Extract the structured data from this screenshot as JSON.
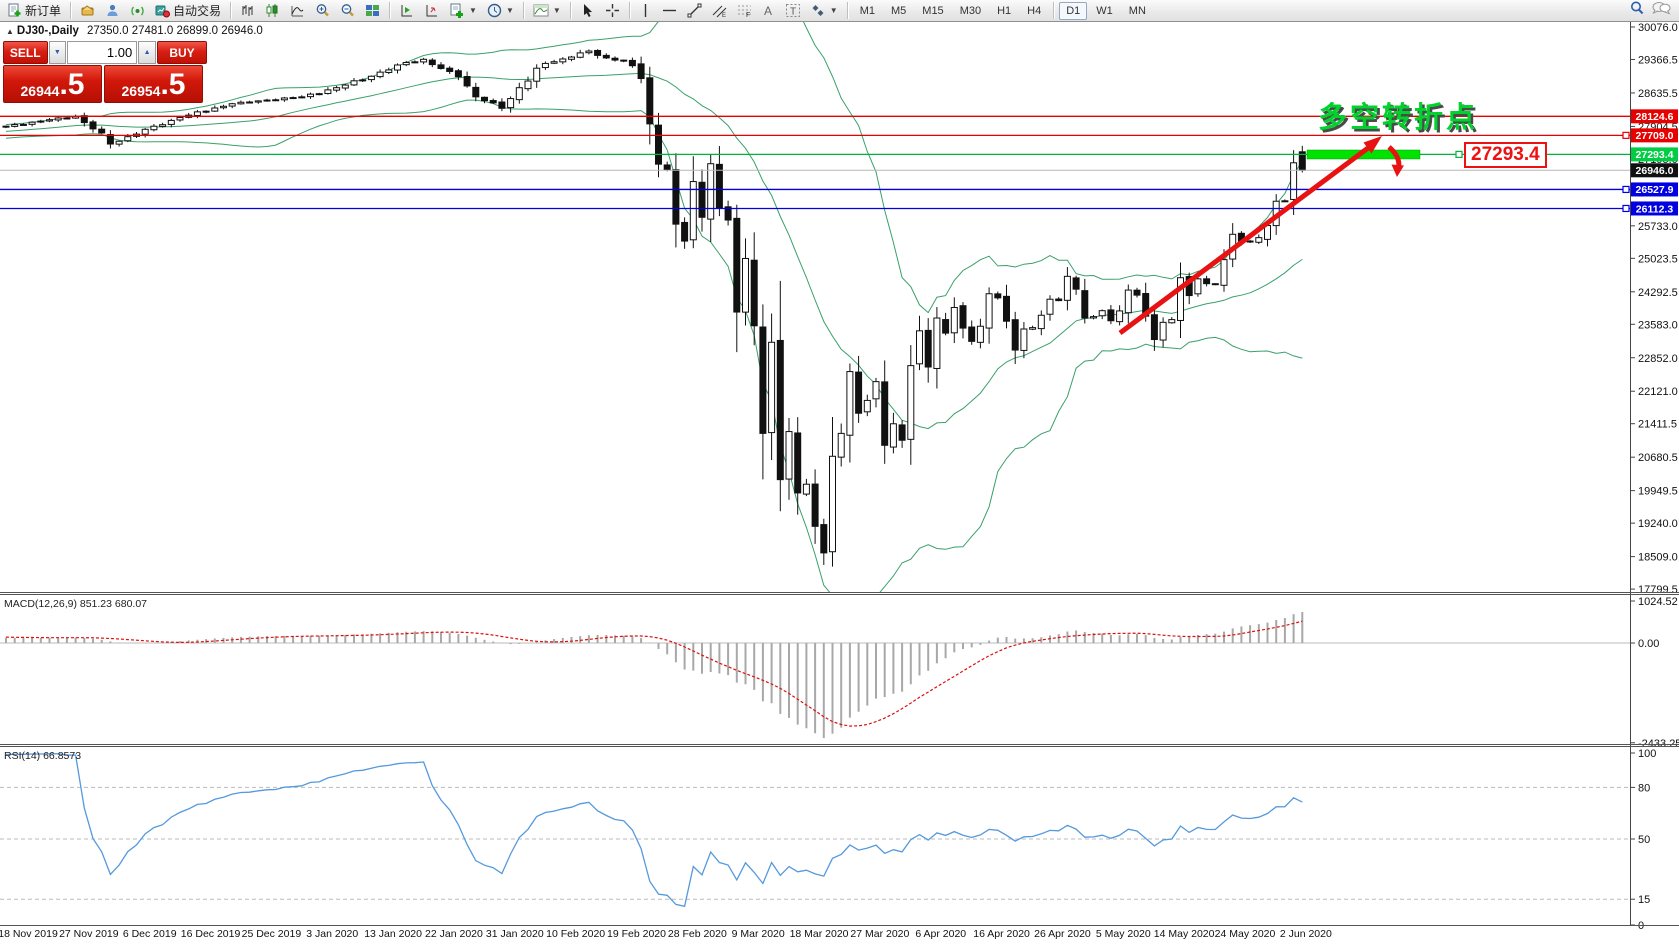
{
  "toolbar": {
    "new_order_label": "新订单",
    "autotrade_label": "自动交易",
    "timeframes": [
      "M1",
      "M5",
      "M15",
      "M30",
      "H1",
      "H4",
      "D1",
      "W1",
      "MN"
    ],
    "active_timeframe": "D1"
  },
  "chart": {
    "title_symbol": "DJ30-,Daily",
    "title_ohlc": "27350.0 27481.0 26899.0 26946.0"
  },
  "trade_panel": {
    "sell_label": "SELL",
    "buy_label": "BUY",
    "volume": "1.00",
    "sell_price_main": "26944",
    "sell_price_big": ".5",
    "buy_price_main": "26954",
    "buy_price_big": ".5"
  },
  "annotations": {
    "turning_point_text": "多空转折点",
    "price_tag": "27293.4"
  },
  "indicators": {
    "macd_label": "MACD(12,26,9) 851.23 680.07",
    "rsi_label": "RSI(14) 66.8573",
    "macd_params": {
      "fast": 12,
      "slow": 26,
      "signal": 9
    },
    "rsi_period": 14,
    "bollinger": {
      "period": 20,
      "deviation": 2
    }
  },
  "axis": {
    "main_ticks": [
      30076.0,
      29366.5,
      28635.5,
      27904.5,
      27195.0,
      26464.0,
      25733.0,
      25023.5,
      24292.5,
      23583.0,
      22852.0,
      22121.0,
      21411.5,
      20680.5,
      19949.5,
      19240.0,
      18509.0,
      17799.5
    ],
    "macd_ticks": [
      {
        "v": 1024.52,
        "label": "1024.52"
      },
      {
        "v": 0,
        "label": "0.00"
      },
      {
        "v": -2433.25,
        "label": "-2433.25"
      }
    ],
    "rsi_ticks": [
      100,
      80,
      50,
      15,
      0
    ],
    "rsi_levels": [
      80,
      50,
      15
    ]
  },
  "levels": [
    {
      "price": 28124.6,
      "color": "#e60000",
      "badge": "#e60000",
      "handles": []
    },
    {
      "price": 27709.0,
      "color": "#e60000",
      "badge": "#e60000",
      "handles": [
        1626
      ]
    },
    {
      "price": 27293.4,
      "color": "#00b33c",
      "badge": "#00cc44",
      "handles": [
        1411,
        1459
      ]
    },
    {
      "price": 26946.0,
      "color": "#b8b8b8",
      "badge": "#111111",
      "handles": []
    },
    {
      "price": 26527.9,
      "color": "#0000e0",
      "badge": "#0000e0",
      "handles": [
        1626
      ]
    },
    {
      "price": 26112.3,
      "color": "#0000e0",
      "badge": "#0000e0",
      "handles": [
        1626
      ]
    }
  ],
  "chart_data": {
    "type": "candlestick",
    "symbol": "DJ30-",
    "timeframe": "Daily",
    "title": "DJ30-,Daily",
    "last_candle": {
      "open": 27350.0,
      "high": 27481.0,
      "low": 26899.0,
      "close": 26946.0
    },
    "price_ylim": [
      17736,
      30185
    ],
    "macd_ylim": [
      -2433.25,
      1024.52
    ],
    "rsi_ylim": [
      0,
      100
    ],
    "horizontal_levels": [
      28124.6,
      27709.0,
      27293.4,
      26946.0,
      26527.9,
      26112.3
    ],
    "x_dates": [
      "18 Nov 2019",
      "27 Nov 2019",
      "6 Dec 2019",
      "16 Dec 2019",
      "25 Dec 2019",
      "3 Jan 2020",
      "13 Jan 2020",
      "22 Jan 2020",
      "31 Jan 2020",
      "10 Feb 2020",
      "19 Feb 2020",
      "28 Feb 2020",
      "9 Mar 2020",
      "18 Mar 2020",
      "27 Mar 2020",
      "6 Apr 2020",
      "16 Apr 2020",
      "26 Apr 2020",
      "5 May 2020",
      "14 May 2020",
      "24 May 2020",
      "2 Jun 2020"
    ],
    "close_anchors": [
      [
        -40,
        26850
      ],
      [
        -30,
        27350
      ],
      [
        -20,
        27650
      ],
      [
        -10,
        27800
      ],
      [
        0,
        27910
      ],
      [
        5,
        28050
      ],
      [
        8,
        28120
      ],
      [
        10,
        27850
      ],
      [
        12,
        27520
      ],
      [
        14,
        27680
      ],
      [
        20,
        28100
      ],
      [
        26,
        28400
      ],
      [
        30,
        28480
      ],
      [
        34,
        28550
      ],
      [
        38,
        28750
      ],
      [
        42,
        29000
      ],
      [
        46,
        29300
      ],
      [
        48,
        29370
      ],
      [
        50,
        29170
      ],
      [
        52,
        28990
      ],
      [
        54,
        28550
      ],
      [
        57,
        28300
      ],
      [
        59,
        28750
      ],
      [
        62,
        29280
      ],
      [
        65,
        29420
      ],
      [
        67,
        29550
      ],
      [
        69,
        29400
      ],
      [
        71,
        29340
      ],
      [
        72,
        29230
      ],
      [
        73,
        28950
      ],
      [
        74,
        27960
      ],
      [
        75,
        27080
      ],
      [
        76,
        26960
      ],
      [
        77,
        25770
      ],
      [
        78,
        25400
      ],
      [
        79,
        26700
      ],
      [
        80,
        25920
      ],
      [
        81,
        27090
      ],
      [
        82,
        26120
      ],
      [
        83,
        25860
      ],
      [
        84,
        23850
      ],
      [
        85,
        25020
      ],
      [
        86,
        23550
      ],
      [
        87,
        21200
      ],
      [
        88,
        23190
      ],
      [
        89,
        20190
      ],
      [
        90,
        21240
      ],
      [
        91,
        19900
      ],
      [
        92,
        20090
      ],
      [
        93,
        19170
      ],
      [
        94,
        18590
      ],
      [
        95,
        20700
      ],
      [
        96,
        21200
      ],
      [
        97,
        22550
      ],
      [
        98,
        21640
      ],
      [
        99,
        21920
      ],
      [
        100,
        22330
      ],
      [
        101,
        20940
      ],
      [
        102,
        21410
      ],
      [
        103,
        21050
      ],
      [
        104,
        22680
      ],
      [
        105,
        23440
      ],
      [
        106,
        22650
      ],
      [
        107,
        23720
      ],
      [
        108,
        23390
      ],
      [
        109,
        23950
      ],
      [
        110,
        23500
      ],
      [
        111,
        23210
      ],
      [
        112,
        23540
      ],
      [
        113,
        24250
      ],
      [
        114,
        24160
      ],
      [
        115,
        23650
      ],
      [
        116,
        23020
      ],
      [
        117,
        23480
      ],
      [
        118,
        23510
      ],
      [
        119,
        23780
      ],
      [
        120,
        24130
      ],
      [
        121,
        24100
      ],
      [
        122,
        24630
      ],
      [
        123,
        24350
      ],
      [
        124,
        23720
      ],
      [
        125,
        23750
      ],
      [
        126,
        23880
      ],
      [
        127,
        23660
      ],
      [
        128,
        23875
      ],
      [
        129,
        24330
      ],
      [
        130,
        24220
      ],
      [
        131,
        23760
      ],
      [
        132,
        23250
      ],
      [
        133,
        23625
      ],
      [
        134,
        23685
      ],
      [
        135,
        24600
      ],
      [
        136,
        24210
      ],
      [
        137,
        24575
      ],
      [
        138,
        24470
      ],
      [
        139,
        24465
      ],
      [
        140,
        24995
      ],
      [
        141,
        25548
      ],
      [
        142,
        25400
      ],
      [
        143,
        25383
      ],
      [
        144,
        25475
      ],
      [
        145,
        25740
      ],
      [
        146,
        26270
      ],
      [
        147,
        26280
      ],
      [
        148,
        27110
      ],
      [
        149,
        26946
      ]
    ]
  }
}
